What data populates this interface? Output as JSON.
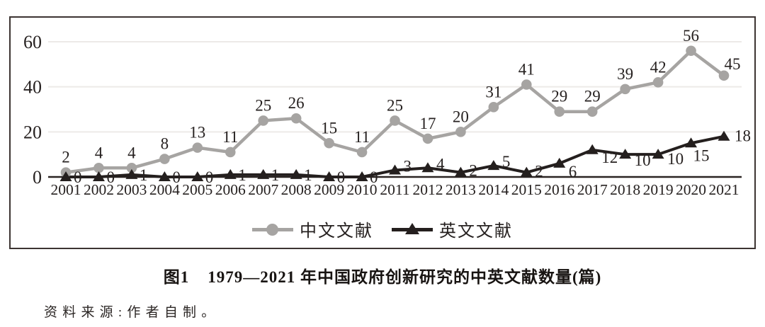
{
  "chart_data": {
    "type": "line",
    "x": [
      2001,
      2002,
      2003,
      2004,
      2005,
      2006,
      2007,
      2008,
      2009,
      2010,
      2011,
      2012,
      2013,
      2014,
      2015,
      2016,
      2017,
      2018,
      2019,
      2020,
      2021
    ],
    "series": [
      {
        "name": "中文文献",
        "marker": "circle",
        "color": "#a6a4a2",
        "values": [
          2,
          4,
          4,
          8,
          13,
          11,
          25,
          26,
          15,
          11,
          25,
          17,
          20,
          31,
          41,
          29,
          29,
          39,
          42,
          56,
          45
        ]
      },
      {
        "name": "英文文献",
        "marker": "triangle",
        "color": "#241f1e",
        "values": [
          0,
          0,
          1,
          0,
          0,
          1,
          1,
          1,
          0,
          0,
          3,
          4,
          2,
          5,
          2,
          6,
          12,
          10,
          10,
          15,
          18
        ]
      }
    ],
    "ylim": [
      0,
      60
    ],
    "yticks": [
      0,
      20,
      40,
      60
    ],
    "grid": true,
    "data_labels": true,
    "legend_position": "bottom-center"
  },
  "caption": {
    "label": "图1",
    "text": "1979—2021 年中国政府创新研究的中英文献数量(篇)"
  },
  "source": {
    "text": "资料来源:作者自制。"
  },
  "colors": {
    "frame_border": "#3c3432",
    "axis_line": "#2a2422",
    "gridline": "#edeae8",
    "label_text": "#262120",
    "series_gray": "#a6a4a2",
    "series_black": "#241f1e"
  }
}
